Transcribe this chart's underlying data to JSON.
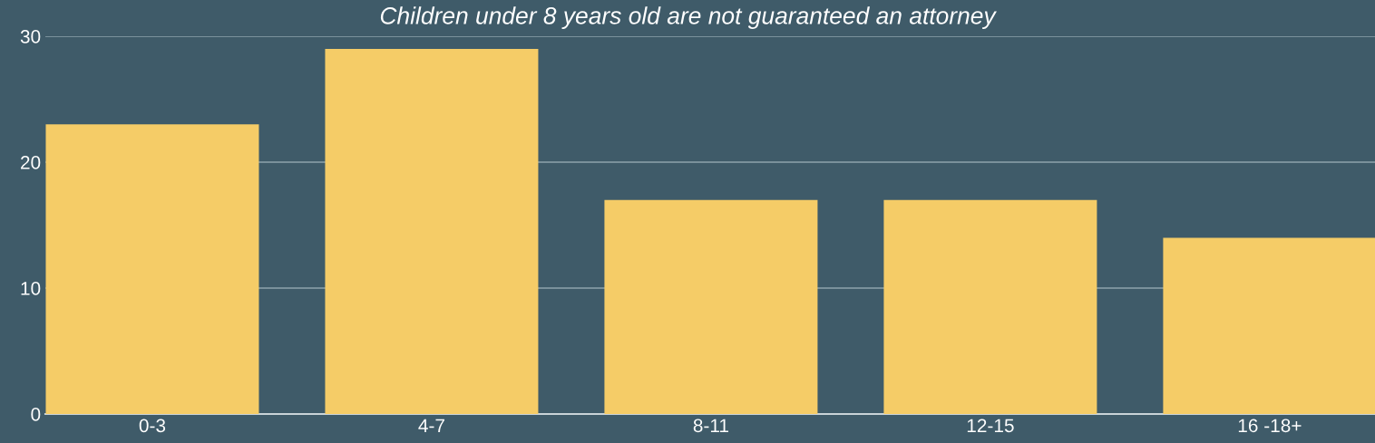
{
  "chart_data": {
    "type": "bar",
    "title": "Children under 8 years old are not guaranteed an attorney",
    "categories": [
      "0-3",
      "4-7",
      "8-11",
      "12-15",
      "16 -18+"
    ],
    "values": [
      23,
      29,
      17,
      17,
      14
    ],
    "color": "#f5cc67",
    "ylim": [
      0,
      30
    ],
    "yticks": [
      0,
      10,
      20,
      30
    ],
    "grid": "y"
  }
}
